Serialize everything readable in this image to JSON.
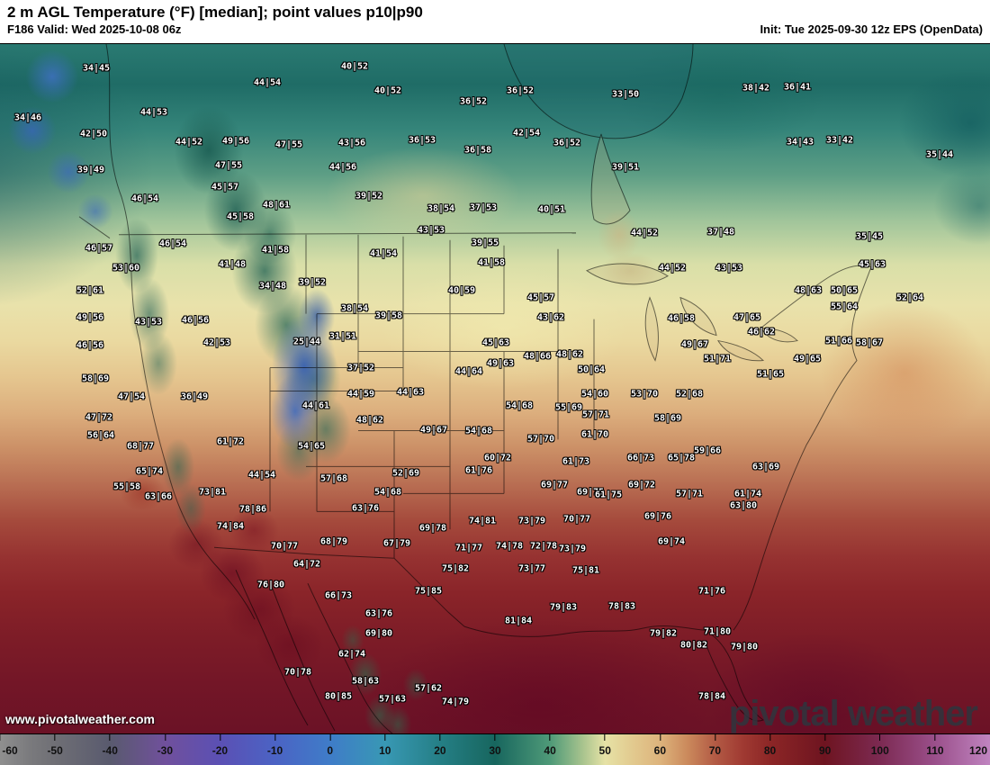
{
  "header": {
    "title": "2 m AGL Temperature (°F) [median]; point values p10|p90",
    "subtitle_left": "F186 Valid: Wed 2025-10-08 06z",
    "subtitle_right": "Init: Tue 2025-09-30 12z EPS (OpenData)"
  },
  "branding": {
    "watermark": "pivotal weather",
    "website": "www.pivotalweather.com"
  },
  "map": {
    "description": "2 m temperature median fill with p10|p90 point values over North America",
    "point_values": [
      [
        "34|45",
        107,
        27
      ],
      [
        "40|52",
        394,
        25
      ],
      [
        "44|54",
        297,
        43
      ],
      [
        "40|52",
        431,
        52
      ],
      [
        "36|52",
        578,
        52
      ],
      [
        "33|50",
        695,
        56
      ],
      [
        "38|42",
        840,
        49
      ],
      [
        "36|41",
        886,
        48
      ],
      [
        "34|46",
        31,
        82
      ],
      [
        "44|53",
        171,
        76
      ],
      [
        "36|52",
        526,
        64
      ],
      [
        "42|50",
        104,
        100
      ],
      [
        "44|52",
        210,
        109
      ],
      [
        "49|56",
        262,
        108
      ],
      [
        "47|55",
        321,
        112
      ],
      [
        "43|56",
        391,
        110
      ],
      [
        "36|53",
        469,
        107
      ],
      [
        "36|58",
        531,
        118
      ],
      [
        "42|54",
        585,
        99
      ],
      [
        "36|52",
        630,
        110
      ],
      [
        "34|43",
        889,
        109
      ],
      [
        "33|42",
        933,
        107
      ],
      [
        "35|44",
        1044,
        123
      ],
      [
        "39|49",
        101,
        140
      ],
      [
        "47|55",
        254,
        135
      ],
      [
        "44|56",
        381,
        137
      ],
      [
        "39|51",
        695,
        137
      ],
      [
        "46|54",
        161,
        172
      ],
      [
        "45|57",
        250,
        159
      ],
      [
        "39|52",
        410,
        169
      ],
      [
        "45|58",
        267,
        192
      ],
      [
        "48|61",
        307,
        179
      ],
      [
        "38|54",
        490,
        183
      ],
      [
        "37|53",
        537,
        182
      ],
      [
        "40|51",
        613,
        184
      ],
      [
        "44|52",
        716,
        210
      ],
      [
        "37|48",
        801,
        209
      ],
      [
        "35|45",
        966,
        214
      ],
      [
        "46|57",
        110,
        227
      ],
      [
        "46|54",
        192,
        222
      ],
      [
        "41|48",
        258,
        245
      ],
      [
        "41|58",
        306,
        229
      ],
      [
        "53|60",
        140,
        249
      ],
      [
        "43|53",
        479,
        207
      ],
      [
        "41|54",
        426,
        233
      ],
      [
        "39|55",
        539,
        221
      ],
      [
        "41|58",
        546,
        243
      ],
      [
        "44|52",
        747,
        249
      ],
      [
        "43|53",
        810,
        249
      ],
      [
        "45|63",
        969,
        245
      ],
      [
        "34|48",
        303,
        269
      ],
      [
        "39|52",
        347,
        265
      ],
      [
        "52|61",
        100,
        274
      ],
      [
        "40|59",
        513,
        274
      ],
      [
        "45|57",
        601,
        282
      ],
      [
        "48|63",
        898,
        274
      ],
      [
        "50|65",
        938,
        274
      ],
      [
        "52|64",
        1011,
        282
      ],
      [
        "55|64",
        938,
        292
      ],
      [
        "43|53",
        165,
        309
      ],
      [
        "46|56",
        217,
        307
      ],
      [
        "49|56",
        100,
        304
      ],
      [
        "38|54",
        394,
        294
      ],
      [
        "39|58",
        432,
        302
      ],
      [
        "43|62",
        612,
        304
      ],
      [
        "46|58",
        757,
        305
      ],
      [
        "47|65",
        830,
        304
      ],
      [
        "46|62",
        846,
        320
      ],
      [
        "51|66",
        932,
        330
      ],
      [
        "58|67",
        966,
        332
      ],
      [
        "42|53",
        241,
        332
      ],
      [
        "25|44",
        341,
        331
      ],
      [
        "31|51",
        381,
        325
      ],
      [
        "46|56",
        100,
        335
      ],
      [
        "45|63",
        551,
        332
      ],
      [
        "48|62",
        633,
        345
      ],
      [
        "49|67",
        772,
        334
      ],
      [
        "49|63",
        556,
        355
      ],
      [
        "44|64",
        521,
        364
      ],
      [
        "48|66",
        597,
        347
      ],
      [
        "37|52",
        401,
        360
      ],
      [
        "50|64",
        657,
        362
      ],
      [
        "51|71",
        797,
        350
      ],
      [
        "49|65",
        897,
        350
      ],
      [
        "51|65",
        856,
        367
      ],
      [
        "44|59",
        401,
        389
      ],
      [
        "44|63",
        456,
        387
      ],
      [
        "58|69",
        106,
        372
      ],
      [
        "47|54",
        146,
        392
      ],
      [
        "36|49",
        216,
        392
      ],
      [
        "44|61",
        351,
        402
      ],
      [
        "54|60",
        661,
        389
      ],
      [
        "53|70",
        716,
        389
      ],
      [
        "52|68",
        766,
        389
      ],
      [
        "48|62",
        411,
        418
      ],
      [
        "54|68",
        577,
        402
      ],
      [
        "55|69",
        632,
        404
      ],
      [
        "57|71",
        662,
        412
      ],
      [
        "58|69",
        742,
        416
      ],
      [
        "59|66",
        786,
        452
      ],
      [
        "49|67",
        482,
        429
      ],
      [
        "54|68",
        532,
        430
      ],
      [
        "57|70",
        601,
        439
      ],
      [
        "61|70",
        661,
        434
      ],
      [
        "61|72",
        256,
        442
      ],
      [
        "54|65",
        346,
        447
      ],
      [
        "47|72",
        110,
        415
      ],
      [
        "56|64",
        112,
        435
      ],
      [
        "68|77",
        156,
        447
      ],
      [
        "60|72",
        553,
        460
      ],
      [
        "61|76",
        532,
        474
      ],
      [
        "65|74",
        166,
        475
      ],
      [
        "44|54",
        291,
        479
      ],
      [
        "57|68",
        371,
        483
      ],
      [
        "52|69",
        451,
        477
      ],
      [
        "66|73",
        712,
        460
      ],
      [
        "65|78",
        757,
        460
      ],
      [
        "63|69",
        851,
        470
      ],
      [
        "61|73",
        640,
        464
      ],
      [
        "55|58",
        141,
        492
      ],
      [
        "63|66",
        176,
        503
      ],
      [
        "73|81",
        236,
        498
      ],
      [
        "78|86",
        281,
        517
      ],
      [
        "54|68",
        431,
        498
      ],
      [
        "63|76",
        406,
        516
      ],
      [
        "69|77",
        616,
        490
      ],
      [
        "69|75",
        656,
        498
      ],
      [
        "61|75",
        676,
        501
      ],
      [
        "69|72",
        713,
        490
      ],
      [
        "57|71",
        766,
        500
      ],
      [
        "61|74",
        831,
        500
      ],
      [
        "63|80",
        826,
        513
      ],
      [
        "74|81",
        536,
        530
      ],
      [
        "69|78",
        481,
        538
      ],
      [
        "73|79",
        591,
        530
      ],
      [
        "70|77",
        641,
        528
      ],
      [
        "74|84",
        256,
        536
      ],
      [
        "70|77",
        316,
        558
      ],
      [
        "68|79",
        371,
        553
      ],
      [
        "67|79",
        441,
        555
      ],
      [
        "71|77",
        521,
        560
      ],
      [
        "74|78",
        566,
        558
      ],
      [
        "72|78",
        604,
        558
      ],
      [
        "73|79",
        636,
        561
      ],
      [
        "69|76",
        731,
        525
      ],
      [
        "69|74",
        746,
        553
      ],
      [
        "64|72",
        341,
        578
      ],
      [
        "75|82",
        506,
        583
      ],
      [
        "73|77",
        591,
        583
      ],
      [
        "75|81",
        651,
        585
      ],
      [
        "66|73",
        376,
        613
      ],
      [
        "75|85",
        476,
        608
      ],
      [
        "76|80",
        301,
        601
      ],
      [
        "63|76",
        421,
        633
      ],
      [
        "71|76",
        791,
        608
      ],
      [
        "79|83",
        626,
        626
      ],
      [
        "78|83",
        691,
        625
      ],
      [
        "81|84",
        576,
        641
      ],
      [
        "71|80",
        797,
        653
      ],
      [
        "79|82",
        737,
        655
      ],
      [
        "80|82",
        771,
        668
      ],
      [
        "79|80",
        827,
        670
      ],
      [
        "69|80",
        421,
        655
      ],
      [
        "62|74",
        391,
        678
      ],
      [
        "70|78",
        331,
        698
      ],
      [
        "80|85",
        376,
        725
      ],
      [
        "58|63",
        406,
        708
      ],
      [
        "57|62",
        476,
        716
      ],
      [
        "57|63",
        436,
        728
      ],
      [
        "74|79",
        506,
        731
      ],
      [
        "78|84",
        791,
        725
      ]
    ]
  },
  "colorbar": {
    "ticks": [
      -60,
      -50,
      -40,
      -30,
      -20,
      -10,
      0,
      10,
      20,
      30,
      40,
      50,
      60,
      70,
      80,
      90,
      100,
      110,
      120
    ],
    "range": [
      -60,
      120
    ],
    "stops": [
      [
        0,
        "#8f8f8f"
      ],
      [
        3,
        "#7a7a7d"
      ],
      [
        5.6,
        "#6f6f75"
      ],
      [
        11.1,
        "#595a6e"
      ],
      [
        16.7,
        "#70509c"
      ],
      [
        22.2,
        "#5b50b4"
      ],
      [
        27.8,
        "#4b63c4"
      ],
      [
        33.3,
        "#3f7cc8"
      ],
      [
        38.9,
        "#3898b4"
      ],
      [
        44.4,
        "#257f86"
      ],
      [
        50,
        "#17665e"
      ],
      [
        55.6,
        "#4f9a78"
      ],
      [
        58.9,
        "#a9c48e"
      ],
      [
        61.1,
        "#e6e2a6"
      ],
      [
        64,
        "#e2c98e"
      ],
      [
        66.7,
        "#ddb37c"
      ],
      [
        69.4,
        "#cb8a5c"
      ],
      [
        72.2,
        "#b35b45"
      ],
      [
        75,
        "#a03a32"
      ],
      [
        77.8,
        "#8c2626"
      ],
      [
        83.3,
        "#6e1420"
      ],
      [
        88.9,
        "#7c2a52"
      ],
      [
        94.4,
        "#9a4f8a"
      ],
      [
        100,
        "#c084c0"
      ]
    ]
  }
}
